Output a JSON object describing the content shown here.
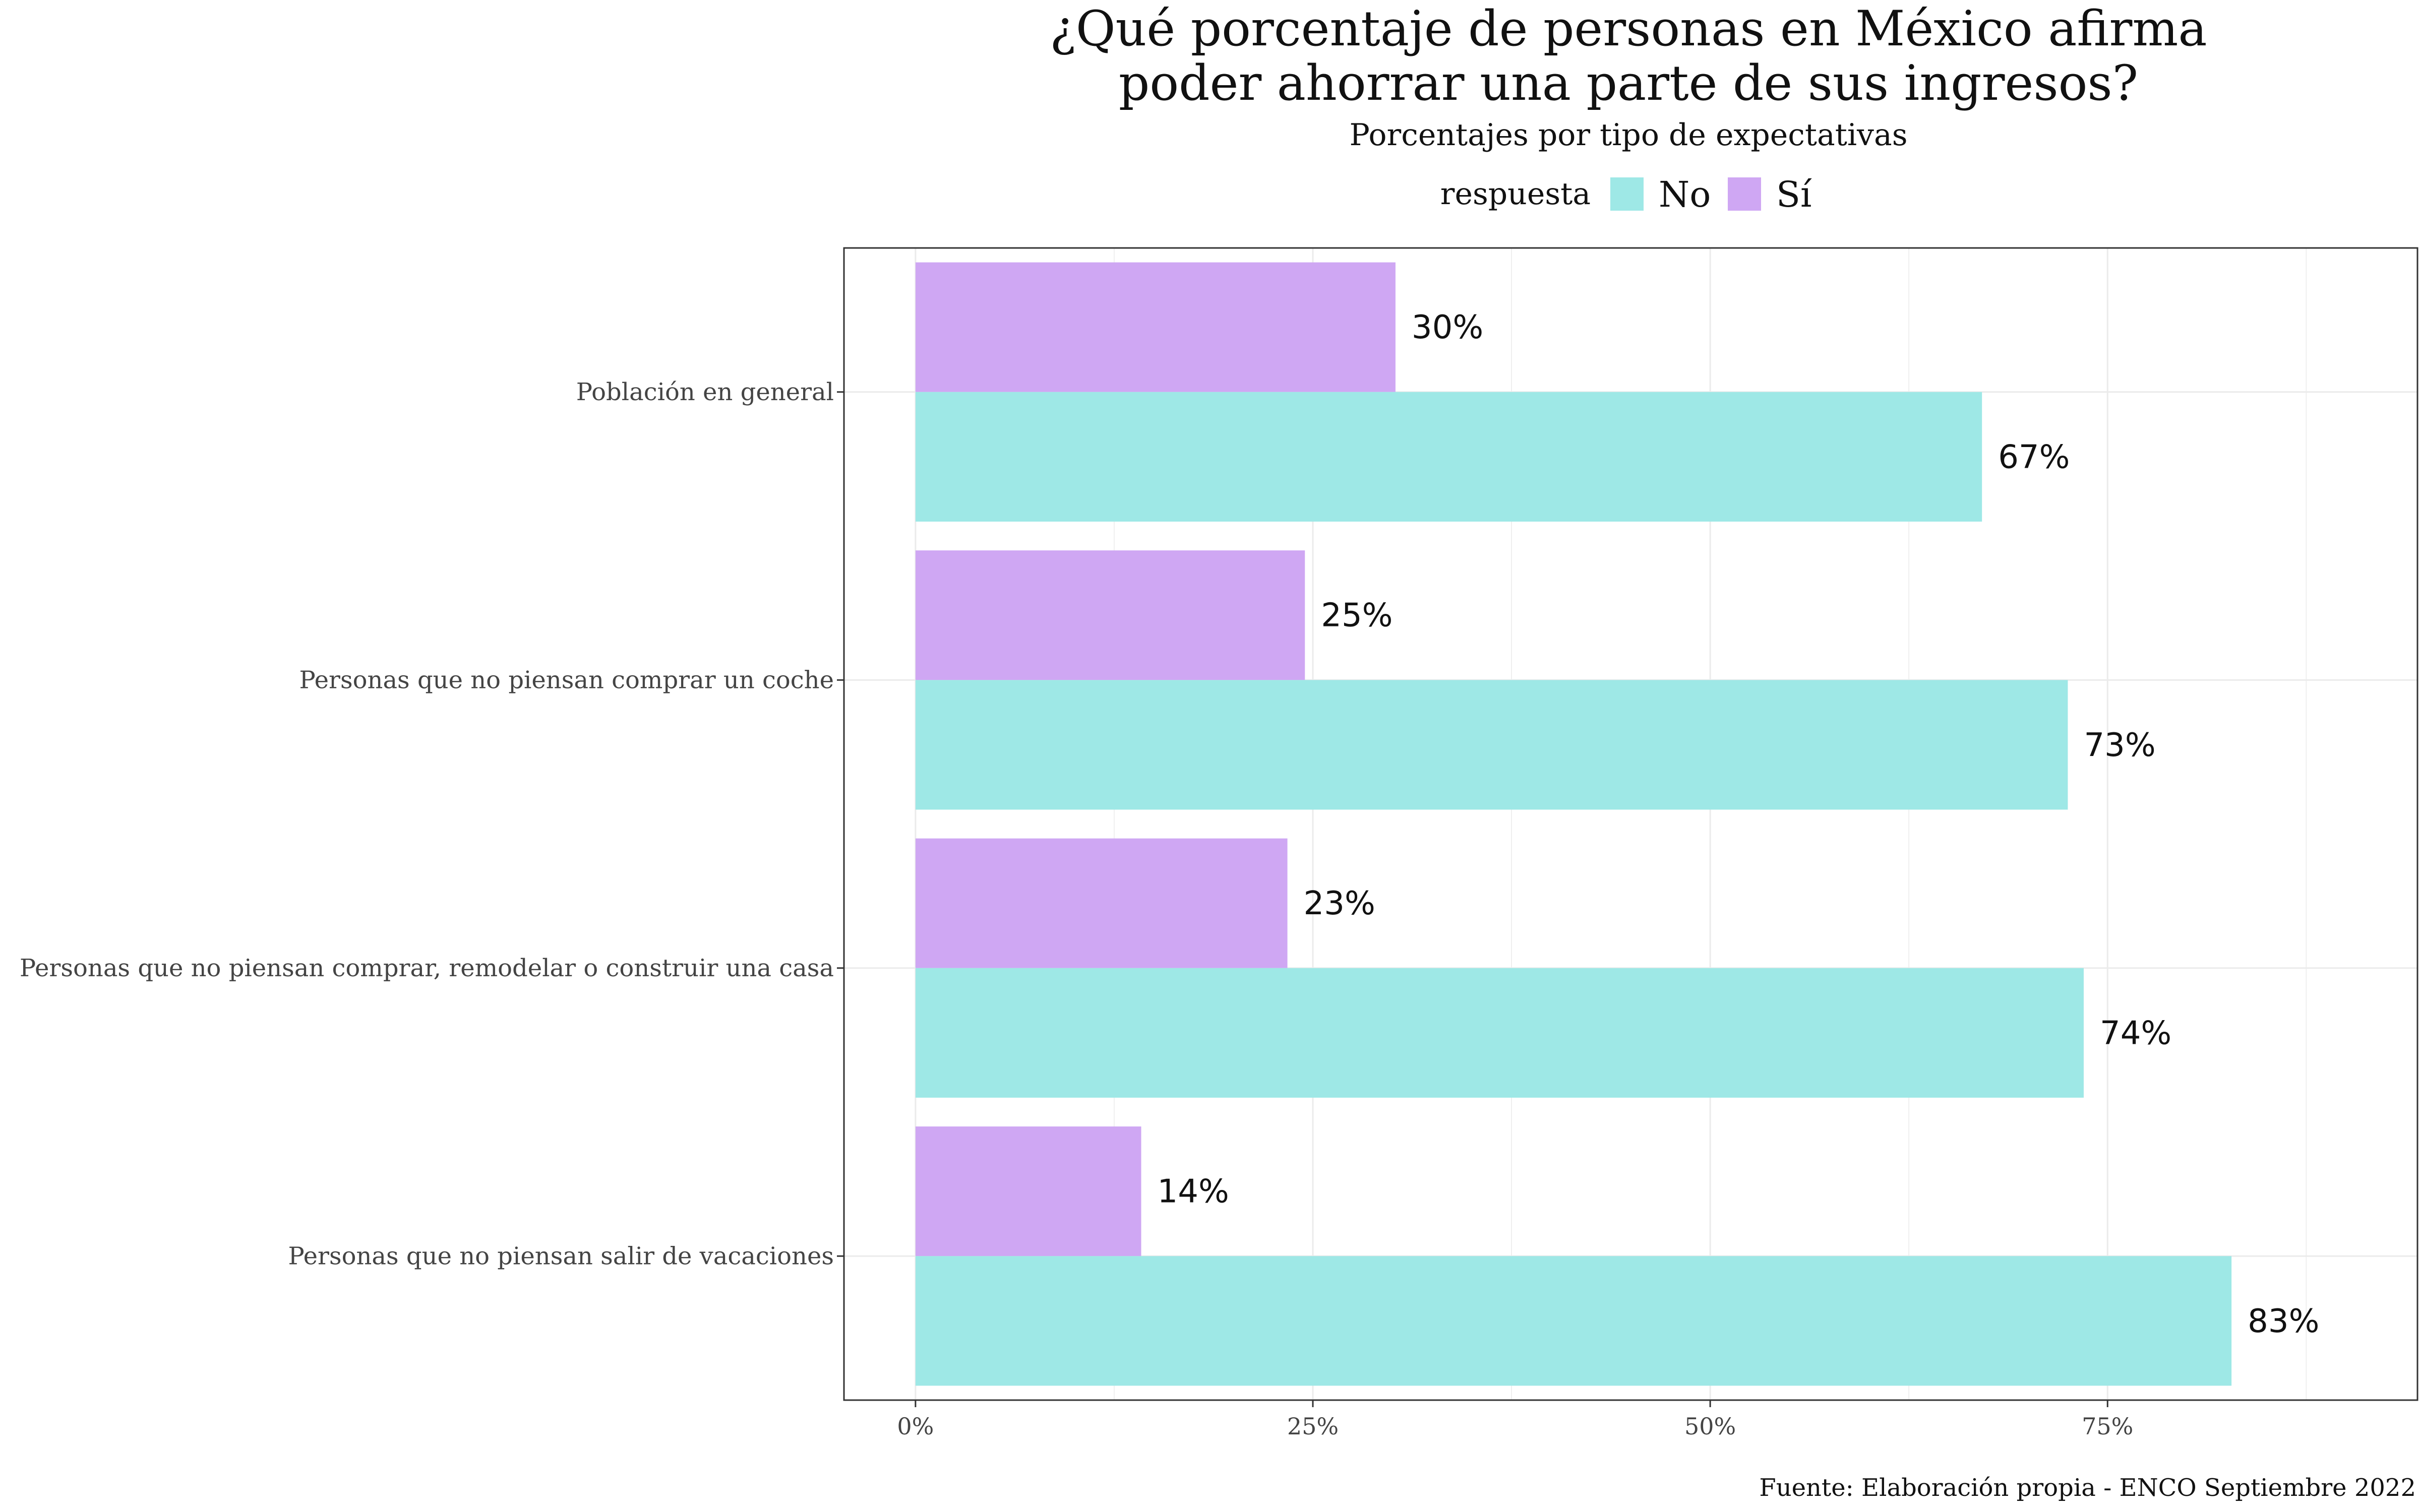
{
  "chart_data": {
    "type": "bar",
    "orientation": "horizontal",
    "title_lines": [
      "¿Qué porcentaje de personas en México afirma",
      "poder ahorrar una parte de sus ingresos?"
    ],
    "subtitle": "Porcentajes por tipo de expectativas",
    "legend": {
      "title": "respuesta",
      "placement": "top",
      "entries": [
        {
          "name": "No",
          "color": "#9ee8e6"
        },
        {
          "name": "Sí",
          "color": "#cfa7f3"
        }
      ]
    },
    "categories": [
      "Población en general",
      "Personas que no piensan comprar un coche",
      "Personas que no piensan comprar, remodelar o construir una casa",
      "Personas que no piensan salir de vacaciones"
    ],
    "series": [
      {
        "name": "Sí",
        "color": "#cfa7f3",
        "values": [
          30.2,
          24.5,
          23.4,
          14.2
        ],
        "labels": [
          "30%",
          "25%",
          "23%",
          "14%"
        ]
      },
      {
        "name": "No",
        "color": "#9ee8e6",
        "values": [
          67.1,
          72.5,
          73.5,
          82.8
        ],
        "labels": [
          "67%",
          "73%",
          "74%",
          "83%"
        ]
      }
    ],
    "xlim": [
      -4.5,
      94.5
    ],
    "x_ticks": [
      0,
      25,
      50,
      75
    ],
    "x_tick_labels": [
      "0%",
      "25%",
      "50%",
      "75%"
    ],
    "grid": true,
    "caption": "Fuente: Elaboración propia - ENCO Septiembre 2022"
  }
}
